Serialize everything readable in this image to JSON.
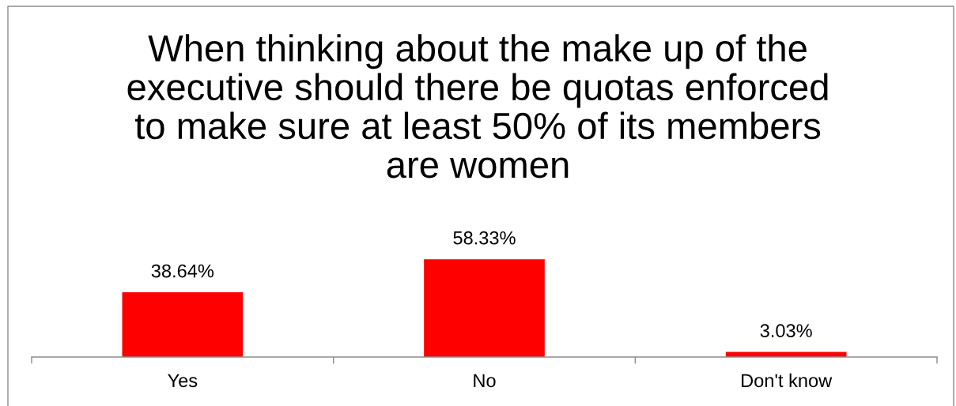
{
  "chart_data": {
    "type": "bar",
    "title": "When thinking about the make up of the\nexecutive should there be quotas enforced\nto make sure at least 50% of its members\nare women",
    "categories": [
      "Yes",
      "No",
      "Don't know"
    ],
    "values": [
      38.64,
      58.33,
      3.03
    ],
    "color": "#ff0000",
    "value_labels": [
      "38.64%",
      "58.33%",
      "3.03%"
    ]
  }
}
